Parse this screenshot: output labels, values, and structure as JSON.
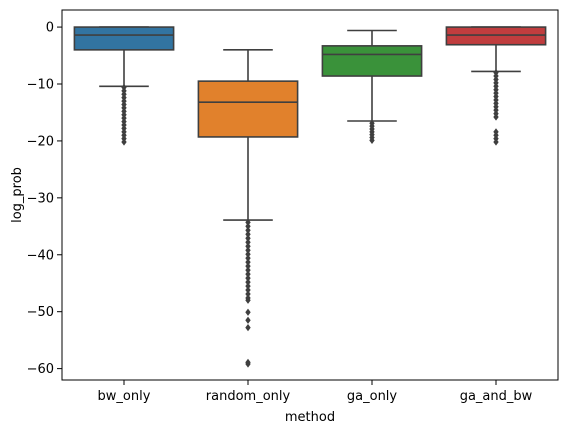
{
  "chart_data": {
    "type": "box",
    "xlabel": "method",
    "ylabel": "log_prob",
    "ylim": [
      -62,
      3
    ],
    "yticks": [
      0,
      -10,
      -20,
      -30,
      -40,
      -50,
      -60
    ],
    "ytick_labels": [
      "0",
      "−10",
      "−20",
      "−30",
      "−40",
      "−50",
      "−60"
    ],
    "grid": false,
    "categories": [
      "bw_only",
      "random_only",
      "ga_only",
      "ga_and_bw"
    ],
    "boxes": [
      {
        "category": "bw_only",
        "color": "#3274A1",
        "q1": -4.0,
        "median": -1.4,
        "q3": 0.0,
        "whisker_low": -10.4,
        "whisker_high": 0.0,
        "outliers": [
          -10.6,
          -11.2,
          -11.8,
          -12.4,
          -13.0,
          -13.6,
          -14.2,
          -14.8,
          -15.4,
          -16.0,
          -16.6,
          -17.2,
          -17.8,
          -18.4,
          -19.0,
          -19.6,
          -20.2
        ]
      },
      {
        "category": "random_only",
        "color": "#E1812C",
        "q1": -19.3,
        "median": -13.2,
        "q3": -9.5,
        "whisker_low": -33.9,
        "whisker_high": -4.0,
        "outliers": [
          -34.3,
          -35.0,
          -35.7,
          -36.4,
          -37.1,
          -37.8,
          -38.5,
          -39.2,
          -39.9,
          -40.6,
          -41.3,
          -42.0,
          -42.7,
          -43.4,
          -44.1,
          -44.8,
          -45.5,
          -46.2,
          -46.9,
          -47.6,
          -48.0,
          -50.1,
          -51.5,
          -52.8,
          -58.9,
          -59.2
        ]
      },
      {
        "category": "ga_only",
        "color": "#3A923A",
        "q1": -8.6,
        "median": -4.8,
        "q3": -3.3,
        "whisker_low": -16.5,
        "whisker_high": -0.6,
        "outliers": [
          -16.9,
          -17.4,
          -17.9,
          -18.4,
          -18.9,
          -19.4,
          -19.9
        ]
      },
      {
        "category": "ga_and_bw",
        "color": "#C03D3E",
        "q1": -3.1,
        "median": -1.4,
        "q3": 0.0,
        "whisker_low": -7.8,
        "whisker_high": 0.0,
        "outliers": [
          -8.0,
          -8.6,
          -9.2,
          -9.8,
          -10.4,
          -11.0,
          -11.6,
          -12.2,
          -12.8,
          -13.4,
          -14.0,
          -14.6,
          -15.2,
          -15.8,
          -18.4,
          -19.0,
          -19.6,
          -20.2
        ]
      }
    ]
  }
}
